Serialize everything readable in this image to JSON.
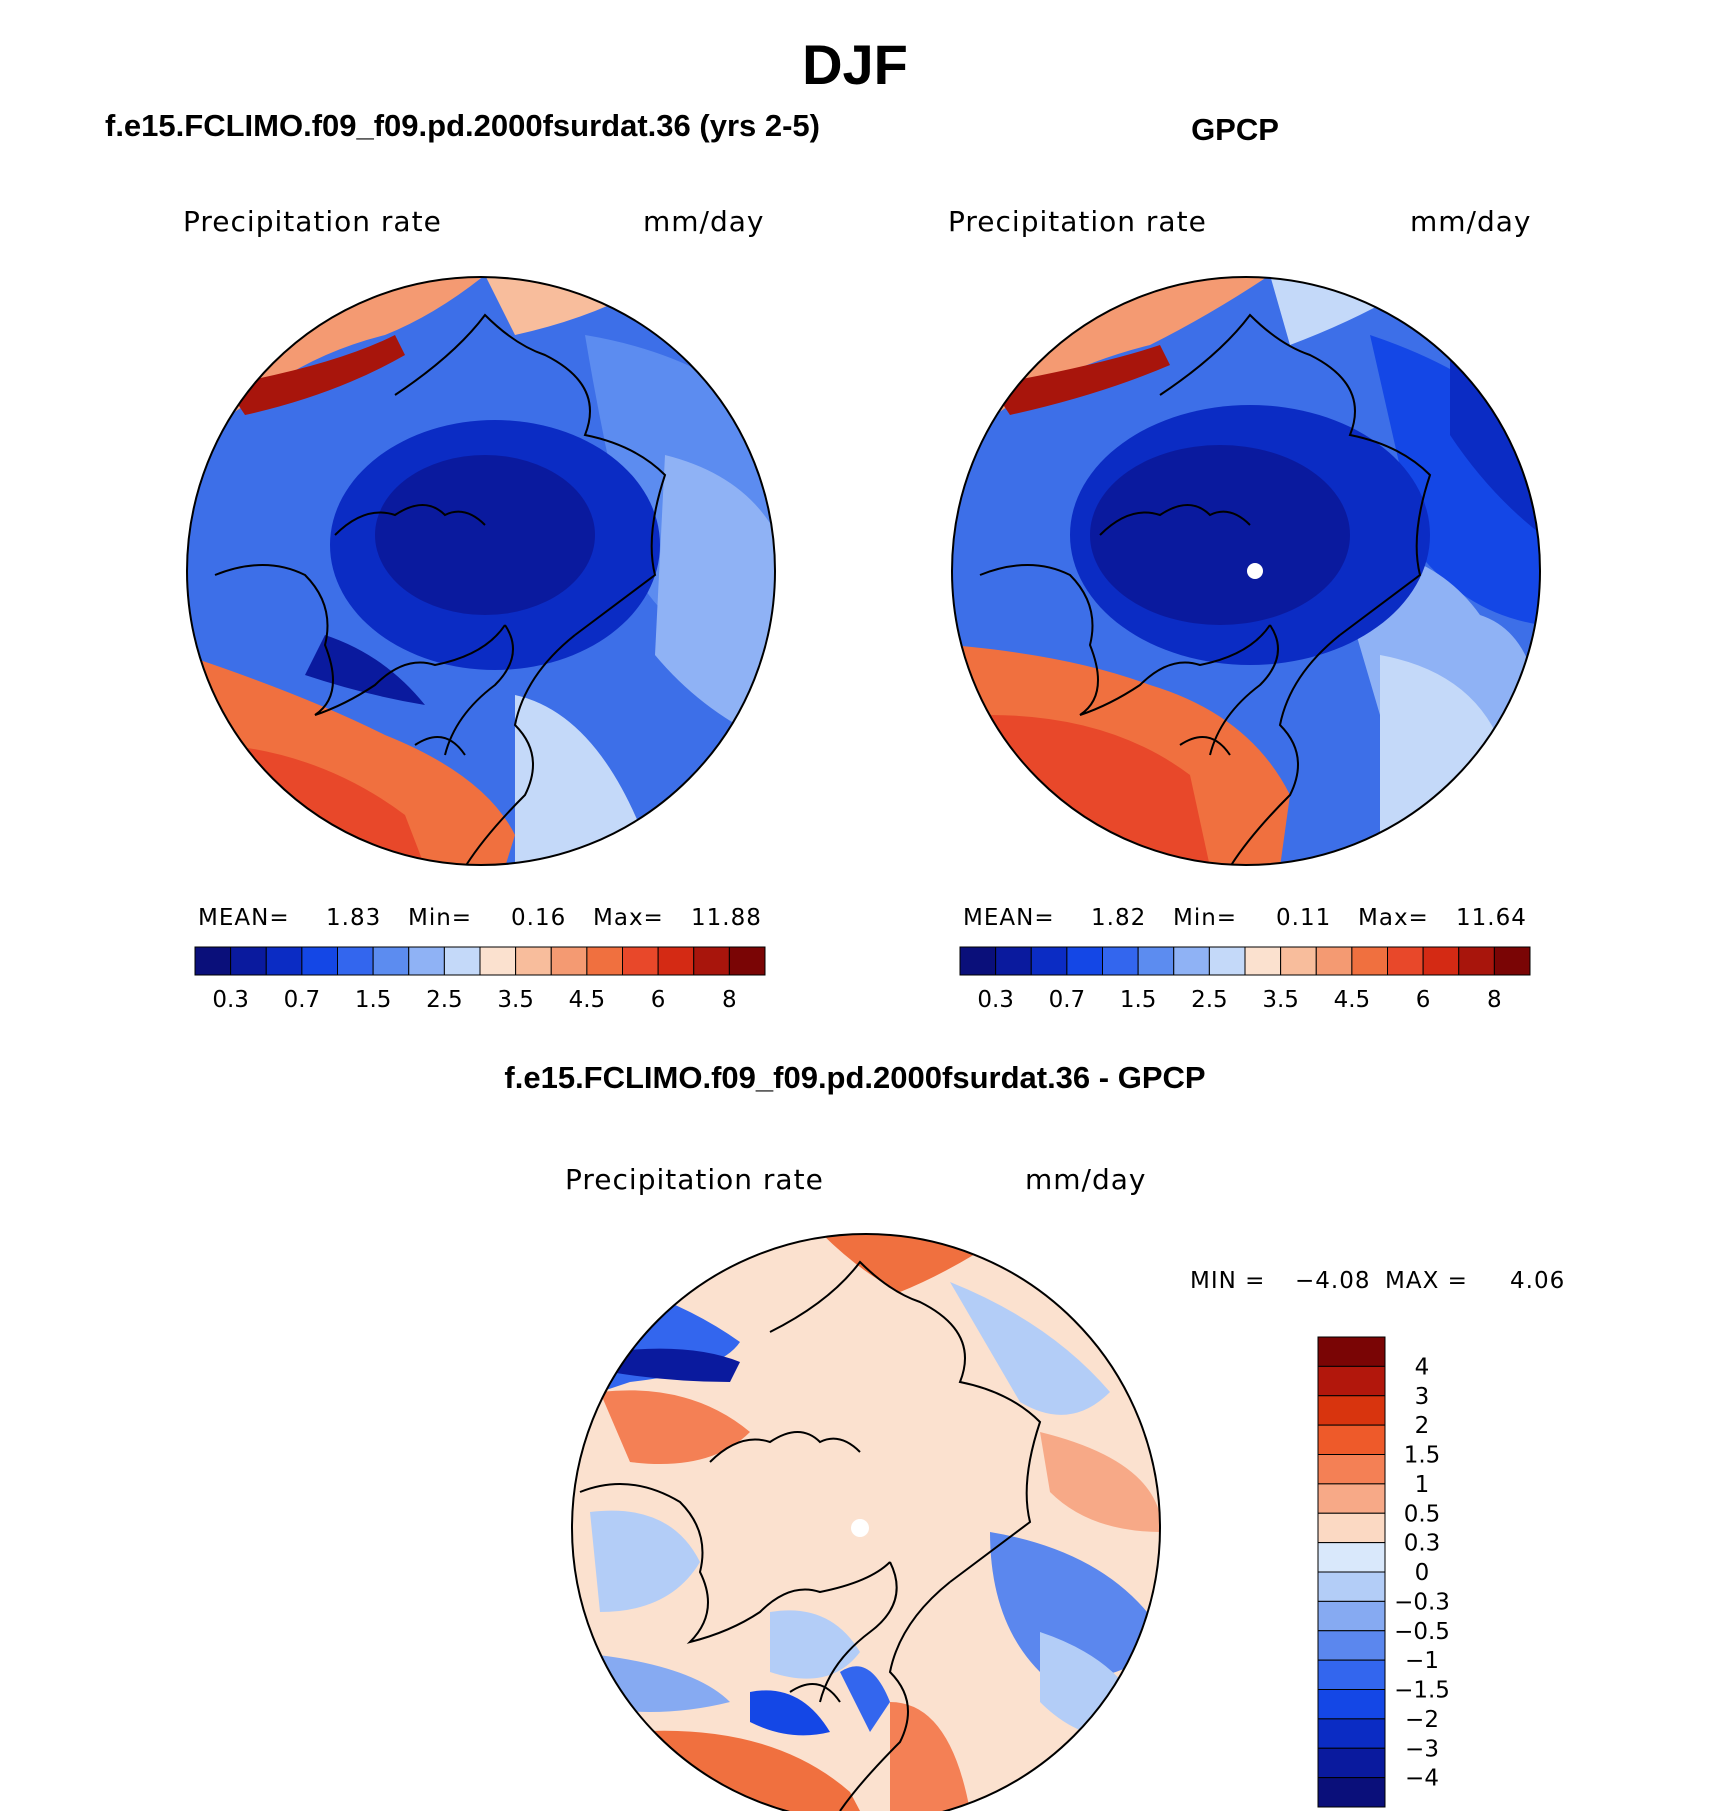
{
  "title": "DJF",
  "panels": [
    {
      "title": "f.e15.FCLIMO.f09_f09.pd.2000fsurdat.36 (yrs 2-5)",
      "variable": "Precipitation rate",
      "units": "mm/day",
      "stats": {
        "mean_label": "MEAN=",
        "mean": "1.83",
        "min_label": "Min=",
        "min": "0.16",
        "max_label": "Max=",
        "max": "11.88"
      }
    },
    {
      "title": "GPCP",
      "variable": "Precipitation rate",
      "units": "mm/day",
      "stats": {
        "mean_label": "MEAN=",
        "mean": "1.82",
        "min_label": "Min=",
        "min": "0.11",
        "max_label": "Max=",
        "max": "11.64"
      }
    },
    {
      "title": "f.e15.FCLIMO.f09_f09.pd.2000fsurdat.36 - GPCP",
      "variable": "Precipitation rate",
      "units": "mm/day",
      "stats": {
        "min_label": "MIN =",
        "min": "−4.08",
        "max_label": "MAX =",
        "max": "4.06"
      }
    }
  ],
  "colorbar_abs": {
    "colors": [
      "#0a0f7a",
      "#0a1a9e",
      "#0b2cc4",
      "#1447e6",
      "#3366ee",
      "#5c8cf0",
      "#8fb2f5",
      "#c4d9f9",
      "#fbe1cf",
      "#f8bd9c",
      "#f49a72",
      "#f0703f",
      "#e8482a",
      "#d42a14",
      "#a8150c",
      "#7a0505"
    ],
    "labels": [
      "0.3",
      "0.7",
      "1.5",
      "2.5",
      "3.5",
      "4.5",
      "6",
      "8"
    ]
  },
  "colorbar_diff": {
    "colors": [
      "#7a0505",
      "#b2170c",
      "#d8340e",
      "#ee5a2a",
      "#f48055",
      "#f7a987",
      "#fbd9c3",
      "#d9e8fb",
      "#b3cdf7",
      "#86aaf2",
      "#5b87ee",
      "#3366ee",
      "#1447e6",
      "#0b2cc4",
      "#0a1a9e",
      "#0a0f7a"
    ],
    "labels": [
      "4",
      "3",
      "2",
      "1.5",
      "1",
      "0.5",
      "0.3",
      "0",
      "−0.3",
      "−0.5",
      "−1",
      "−1.5",
      "−2",
      "−3",
      "−4"
    ]
  },
  "maps": [
    {
      "projection": "north polar stereographic",
      "field": "model precipitation",
      "colors": {
        "base": "#3d6fe8",
        "pole": "#0a1a9e",
        "atlantic": "#e8482a",
        "pacific": "#d42a14"
      }
    },
    {
      "projection": "north polar stereographic",
      "field": "observed precipitation",
      "colors": {
        "base": "#3d6fe8",
        "pole": "#0a1a9e",
        "atlantic": "#f0703f",
        "pacific": "#d42a14"
      }
    },
    {
      "projection": "north polar stereographic",
      "field": "difference",
      "colors": {
        "base": "#fbe1cf",
        "neg": "#3366ee",
        "pos": "#f0703f"
      }
    }
  ]
}
